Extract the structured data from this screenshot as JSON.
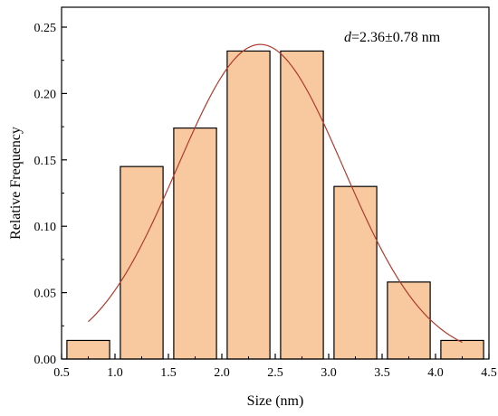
{
  "chart_data": {
    "type": "bar",
    "xlabel": "Size (nm)",
    "ylabel": "Relative Frequency",
    "xlim": [
      0.5,
      4.5
    ],
    "ylim": [
      0,
      0.265
    ],
    "xticks": [
      "0.5",
      "1.0",
      "1.5",
      "2.0",
      "2.5",
      "3.0",
      "3.5",
      "4.0",
      "4.5"
    ],
    "yticks": [
      "0.00",
      "0.05",
      "0.10",
      "0.15",
      "0.20",
      "0.25"
    ],
    "bins": [
      {
        "center": 0.75,
        "value": 0.014
      },
      {
        "center": 1.25,
        "value": 0.145
      },
      {
        "center": 1.75,
        "value": 0.174
      },
      {
        "center": 2.25,
        "value": 0.232
      },
      {
        "center": 2.75,
        "value": 0.232
      },
      {
        "center": 3.25,
        "value": 0.13
      },
      {
        "center": 3.75,
        "value": 0.058
      },
      {
        "center": 4.25,
        "value": 0.014
      }
    ],
    "bar_width": 0.4,
    "fit": {
      "type": "gaussian",
      "mean": 2.36,
      "sigma": 0.78,
      "peak": 0.237,
      "x_range": [
        0.75,
        4.25
      ],
      "color": "#b03a2e"
    },
    "bar_color": "#f8c99e",
    "annotation": {
      "symbol": "d",
      "text": "=2.36±0.78 nm"
    },
    "grid": false
  }
}
